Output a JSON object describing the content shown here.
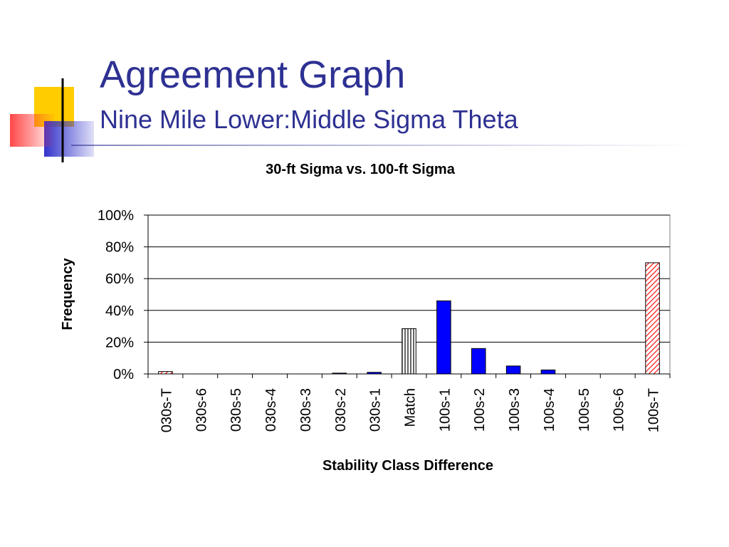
{
  "slide": {
    "title": "Agreement Graph",
    "subtitle": "Nine Mile Lower:Middle Sigma Theta"
  },
  "colors": {
    "title": "#2e3192",
    "deco_yellow": "#ffcc00",
    "deco_blue": "#3333cc",
    "deco_red": "#ff3333",
    "bar_blue": "#0000ff",
    "bar_red_hatch": "#ff0000"
  },
  "chart_data": {
    "type": "bar",
    "title": "30-ft Sigma vs. 100-ft Sigma",
    "xlabel": "Stability Class Difference",
    "ylabel": "Frequency",
    "ylim": [
      0,
      100
    ],
    "yticks": [
      "0%",
      "20%",
      "40%",
      "60%",
      "80%",
      "100%"
    ],
    "grid": true,
    "categories": [
      "030s-T",
      "030s-6",
      "030s-5",
      "030s-4",
      "030s-3",
      "030s-2",
      "030s-1",
      "Match",
      "100s-1",
      "100s-2",
      "100s-3",
      "100s-4",
      "100s-5",
      "100s-6",
      "100s-T"
    ],
    "values": [
      1.5,
      0,
      0,
      0,
      0,
      0.5,
      1,
      28.5,
      46,
      16,
      5,
      2.5,
      0,
      0,
      70
    ],
    "fills": [
      "red-hatch",
      "blue",
      "blue",
      "blue",
      "blue",
      "blue",
      "blue",
      "vertical-stripes",
      "blue",
      "blue",
      "blue",
      "blue",
      "blue",
      "blue",
      "red-hatch"
    ]
  }
}
